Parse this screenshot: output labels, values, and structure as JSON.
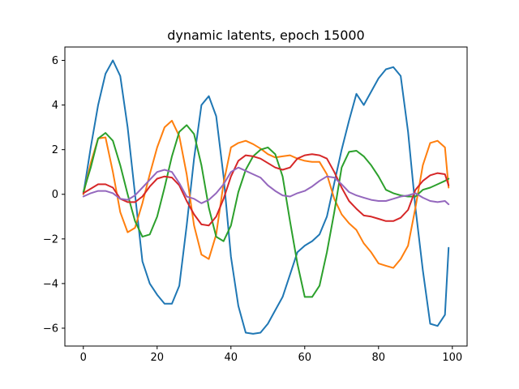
{
  "chart_data": {
    "type": "line",
    "title": "dynamic latents, epoch 15000",
    "xlabel": "",
    "ylabel": "",
    "xlim": [
      -5,
      104
    ],
    "ylim": [
      -6.8,
      6.6
    ],
    "xticks": [
      0,
      20,
      40,
      60,
      80,
      100
    ],
    "yticks": [
      -6,
      -4,
      -2,
      0,
      2,
      4,
      6
    ],
    "grid": false,
    "legend": "none",
    "series": [
      {
        "color": "#1f77b4",
        "x": [
          0,
          2,
          4,
          6,
          8,
          10,
          12,
          14,
          16,
          18,
          20,
          22,
          24,
          26,
          28,
          30,
          32,
          34,
          36,
          38,
          40,
          42,
          44,
          46,
          48,
          50,
          52,
          54,
          56,
          58,
          60,
          62,
          64,
          66,
          68,
          70,
          72,
          74,
          76,
          78,
          80,
          82,
          84,
          86,
          88,
          90,
          92,
          94,
          96,
          98,
          99
        ],
        "y": [
          0,
          2.1,
          4.0,
          5.4,
          6.0,
          5.3,
          3.0,
          0,
          -3.0,
          -4.0,
          -4.5,
          -4.9,
          -4.9,
          -4.1,
          -1.4,
          1.6,
          4.0,
          4.4,
          3.5,
          0.8,
          -2.8,
          -5.0,
          -6.2,
          -6.25,
          -6.2,
          -5.8,
          -5.2,
          -4.6,
          -3.6,
          -2.6,
          -2.3,
          -2.1,
          -1.8,
          -1.0,
          0.5,
          2.0,
          3.3,
          4.5,
          4.0,
          4.6,
          5.2,
          5.6,
          5.7,
          5.3,
          2.8,
          -0.6,
          -3.4,
          -5.8,
          -5.9,
          -5.4,
          -2.4
        ]
      },
      {
        "color": "#ff7f0e",
        "x": [
          0,
          2,
          4,
          6,
          8,
          10,
          12,
          14,
          16,
          18,
          20,
          22,
          24,
          26,
          28,
          30,
          32,
          34,
          36,
          38,
          40,
          42,
          44,
          46,
          48,
          50,
          52,
          54,
          56,
          58,
          60,
          62,
          64,
          66,
          68,
          70,
          72,
          74,
          76,
          78,
          80,
          82,
          84,
          86,
          88,
          90,
          92,
          94,
          96,
          98,
          99
        ],
        "y": [
          0,
          1.4,
          2.5,
          2.55,
          1.0,
          -0.8,
          -1.7,
          -1.5,
          -0.4,
          0.9,
          2.1,
          3.0,
          3.3,
          2.6,
          0.9,
          -1.4,
          -2.7,
          -2.9,
          -1.8,
          0.5,
          2.1,
          2.3,
          2.4,
          2.25,
          2.05,
          1.8,
          1.65,
          1.7,
          1.75,
          1.6,
          1.5,
          1.45,
          1.45,
          0.9,
          -0.2,
          -0.9,
          -1.3,
          -1.6,
          -2.2,
          -2.6,
          -3.1,
          -3.2,
          -3.3,
          -2.9,
          -2.3,
          -0.6,
          1.3,
          2.3,
          2.4,
          2.1,
          0.3
        ]
      },
      {
        "color": "#2ca02c",
        "x": [
          0,
          2,
          4,
          6,
          8,
          10,
          12,
          14,
          16,
          18,
          20,
          22,
          24,
          26,
          28,
          30,
          32,
          34,
          36,
          38,
          40,
          42,
          44,
          46,
          48,
          50,
          52,
          54,
          56,
          58,
          60,
          62,
          64,
          66,
          68,
          70,
          72,
          74,
          76,
          78,
          80,
          82,
          84,
          86,
          88,
          90,
          92,
          94,
          96,
          98,
          99
        ],
        "y": [
          0.1,
          1.2,
          2.5,
          2.75,
          2.4,
          1.3,
          0,
          -1.2,
          -1.9,
          -1.8,
          -1.0,
          0.3,
          1.7,
          2.8,
          3.1,
          2.7,
          1.3,
          -0.6,
          -1.9,
          -2.1,
          -1.4,
          0.1,
          1.1,
          1.7,
          2.0,
          2.1,
          1.8,
          0.8,
          -1.2,
          -3.1,
          -4.6,
          -4.6,
          -4.1,
          -2.6,
          -0.8,
          1.2,
          1.9,
          1.95,
          1.7,
          1.3,
          0.8,
          0.2,
          0.05,
          -0.05,
          -0.1,
          -0.1,
          0.2,
          0.3,
          0.45,
          0.6,
          0.7
        ]
      },
      {
        "color": "#d62728",
        "x": [
          0,
          2,
          4,
          6,
          8,
          10,
          12,
          14,
          16,
          18,
          20,
          22,
          24,
          26,
          28,
          30,
          32,
          34,
          36,
          38,
          40,
          42,
          44,
          46,
          48,
          50,
          52,
          54,
          56,
          58,
          60,
          62,
          64,
          66,
          68,
          70,
          72,
          74,
          76,
          78,
          80,
          82,
          84,
          86,
          88,
          90,
          92,
          94,
          96,
          98,
          99
        ],
        "y": [
          0.05,
          0.25,
          0.45,
          0.45,
          0.3,
          -0.2,
          -0.35,
          -0.35,
          -0.1,
          0.35,
          0.7,
          0.8,
          0.75,
          0.4,
          -0.3,
          -0.9,
          -1.35,
          -1.4,
          -1.0,
          -0.2,
          0.8,
          1.5,
          1.75,
          1.7,
          1.6,
          1.4,
          1.2,
          1.1,
          1.2,
          1.6,
          1.75,
          1.8,
          1.75,
          1.6,
          1.0,
          0.3,
          -0.3,
          -0.65,
          -0.95,
          -1.0,
          -1.1,
          -1.2,
          -1.2,
          -1.05,
          -0.7,
          0.2,
          0.6,
          0.85,
          0.95,
          0.9,
          0.4
        ]
      },
      {
        "color": "#9467bd",
        "x": [
          0,
          2,
          4,
          6,
          8,
          10,
          12,
          14,
          16,
          18,
          20,
          22,
          24,
          26,
          28,
          30,
          32,
          34,
          36,
          38,
          40,
          42,
          44,
          46,
          48,
          50,
          52,
          54,
          56,
          58,
          60,
          62,
          64,
          66,
          68,
          70,
          72,
          74,
          76,
          78,
          80,
          82,
          84,
          86,
          88,
          90,
          92,
          94,
          96,
          98,
          99
        ],
        "y": [
          -0.1,
          0.05,
          0.15,
          0.15,
          0.05,
          -0.2,
          -0.25,
          -0.05,
          0.3,
          0.65,
          1.0,
          1.1,
          1.0,
          0.5,
          -0.1,
          -0.2,
          -0.4,
          -0.25,
          0.05,
          0.45,
          1.0,
          1.2,
          1.05,
          0.9,
          0.75,
          0.4,
          0.15,
          -0.05,
          -0.1,
          0.05,
          0.15,
          0.35,
          0.6,
          0.8,
          0.75,
          0.45,
          0.1,
          -0.05,
          -0.15,
          -0.25,
          -0.3,
          -0.3,
          -0.2,
          -0.1,
          -0.05,
          0.05,
          -0.15,
          -0.3,
          -0.35,
          -0.3,
          -0.45
        ]
      }
    ]
  }
}
